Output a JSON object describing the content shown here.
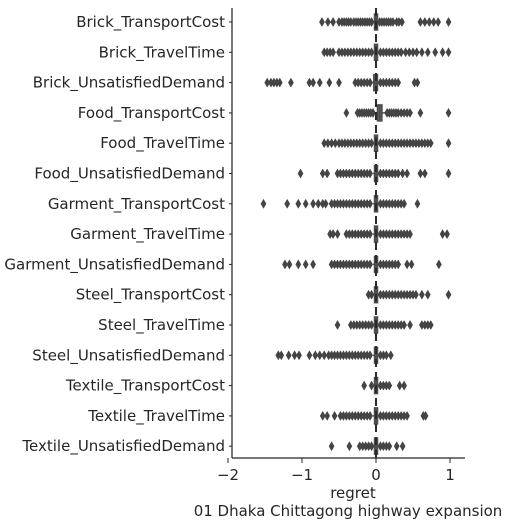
{
  "chart_data": {
    "type": "boxplot",
    "orientation": "horizontal",
    "title": "",
    "xlabel": "regret",
    "subtitle": "01 Dhaka Chittagong highway expansion",
    "ylabel": "",
    "xlim": [
      -2,
      1.15
    ],
    "xticks": [
      -2,
      -1,
      0,
      1
    ],
    "xtick_labels": [
      "−2",
      "−1",
      "0",
      "1"
    ],
    "grid": false,
    "box_color": "#4d4d4d",
    "outlier_color": "#444444",
    "categories": [
      "Brick_TransportCost",
      "Brick_TravelTime",
      "Brick_UnsatisfiedDemand",
      "Food_TransportCost",
      "Food_TravelTime",
      "Food_UnsatisfiedDemand",
      "Garment_TransportCost",
      "Garment_TravelTime",
      "Garment_UnsatisfiedDemand",
      "Steel_TransportCost",
      "Steel_TravelTime",
      "Steel_UnsatisfiedDemand",
      "Textile_TransportCost",
      "Textile_TravelTime",
      "Textile_UnsatisfiedDemand"
    ],
    "series": [
      {
        "category": "Brick_TransportCost",
        "q1": -0.02,
        "median": 0.0,
        "q3": 0.01,
        "whisker_low": -0.03,
        "whisker_high": 0.03,
        "outliers": [
          -0.73,
          -0.65,
          -0.58,
          -0.5,
          -0.46,
          -0.43,
          -0.4,
          -0.37,
          -0.34,
          -0.3,
          -0.27,
          -0.24,
          -0.21,
          -0.18,
          -0.15,
          -0.12,
          -0.09,
          -0.06,
          0.05,
          0.08,
          0.11,
          0.14,
          0.17,
          0.2,
          0.23,
          0.28,
          0.31,
          0.35,
          0.6,
          0.66,
          0.72,
          0.78,
          0.84,
          0.98
        ]
      },
      {
        "category": "Brick_TravelTime",
        "q1": -0.02,
        "median": 0.0,
        "q3": 0.02,
        "whisker_low": -0.04,
        "whisker_high": 0.04,
        "outliers": [
          -0.7,
          -0.66,
          -0.62,
          -0.58,
          -0.5,
          -0.46,
          -0.42,
          -0.38,
          -0.34,
          -0.3,
          -0.26,
          -0.22,
          -0.18,
          -0.14,
          -0.1,
          -0.06,
          0.06,
          0.1,
          0.14,
          0.18,
          0.22,
          0.26,
          0.3,
          0.34,
          0.4,
          0.45,
          0.5,
          0.55,
          0.62,
          0.7,
          0.8,
          0.9,
          0.98
        ]
      },
      {
        "category": "Brick_UnsatisfiedDemand",
        "q1": -0.03,
        "median": 0.0,
        "q3": 0.02,
        "whisker_low": -0.05,
        "whisker_high": 0.04,
        "outliers": [
          -1.47,
          -1.42,
          -1.38,
          -1.34,
          -1.3,
          -1.15,
          -0.9,
          -0.85,
          -0.76,
          -0.63,
          -0.5,
          -0.28,
          -0.24,
          -0.2,
          -0.16,
          -0.12,
          -0.08,
          0.06,
          0.1,
          0.14,
          0.18,
          0.22,
          0.26,
          0.3,
          0.52,
          0.56
        ]
      },
      {
        "category": "Food_TransportCost",
        "q1": 0.02,
        "median": 0.05,
        "q3": 0.08,
        "whisker_low": -0.02,
        "whisker_high": 0.12,
        "outliers": [
          -0.4,
          -0.25,
          -0.22,
          -0.19,
          -0.16,
          -0.13,
          -0.1,
          -0.07,
          -0.04,
          0.15,
          0.18,
          0.21,
          0.24,
          0.27,
          0.3,
          0.34,
          0.38,
          0.42,
          0.46,
          0.6,
          0.98
        ]
      },
      {
        "category": "Food_TravelTime",
        "q1": -0.02,
        "median": 0.0,
        "q3": 0.02,
        "whisker_low": -0.04,
        "whisker_high": 0.04,
        "outliers": [
          -0.7,
          -0.65,
          -0.6,
          -0.55,
          -0.5,
          -0.46,
          -0.42,
          -0.38,
          -0.34,
          -0.3,
          -0.26,
          -0.22,
          -0.18,
          -0.14,
          -0.1,
          -0.06,
          0.06,
          0.1,
          0.14,
          0.18,
          0.22,
          0.26,
          0.3,
          0.34,
          0.38,
          0.42,
          0.46,
          0.5,
          0.54,
          0.58,
          0.62,
          0.66,
          0.7,
          0.74,
          0.98
        ]
      },
      {
        "category": "Food_UnsatisfiedDemand",
        "q1": -0.02,
        "median": 0.0,
        "q3": 0.02,
        "whisker_low": -0.04,
        "whisker_high": 0.04,
        "outliers": [
          -1.02,
          -0.72,
          -0.66,
          -0.52,
          -0.48,
          -0.44,
          -0.4,
          -0.36,
          -0.32,
          -0.28,
          -0.24,
          -0.2,
          -0.16,
          -0.12,
          -0.08,
          0.06,
          0.1,
          0.14,
          0.18,
          0.22,
          0.26,
          0.3,
          0.36,
          0.42,
          0.6,
          0.66,
          0.98
        ]
      },
      {
        "category": "Garment_TransportCost",
        "q1": -0.02,
        "median": 0.0,
        "q3": 0.02,
        "whisker_low": -0.04,
        "whisker_high": 0.04,
        "outliers": [
          -1.52,
          -1.2,
          -1.05,
          -0.95,
          -0.85,
          -0.78,
          -0.72,
          -0.68,
          -0.6,
          -0.56,
          -0.52,
          -0.48,
          -0.44,
          -0.4,
          -0.36,
          -0.32,
          -0.28,
          -0.24,
          -0.2,
          -0.16,
          -0.12,
          -0.08,
          0.06,
          0.1,
          0.14,
          0.18,
          0.22,
          0.26,
          0.3,
          0.34,
          0.38,
          0.56
        ]
      },
      {
        "category": "Garment_TravelTime",
        "q1": -0.02,
        "median": 0.0,
        "q3": 0.02,
        "whisker_low": -0.04,
        "whisker_high": 0.04,
        "outliers": [
          -0.62,
          -0.58,
          -0.52,
          -0.4,
          -0.36,
          -0.32,
          -0.28,
          -0.24,
          -0.2,
          -0.16,
          -0.12,
          -0.08,
          0.06,
          0.1,
          0.14,
          0.18,
          0.22,
          0.26,
          0.3,
          0.34,
          0.38,
          0.42,
          0.46,
          0.9,
          0.96
        ]
      },
      {
        "category": "Garment_UnsatisfiedDemand",
        "q1": -0.02,
        "median": 0.0,
        "q3": 0.02,
        "whisker_low": -0.04,
        "whisker_high": 0.04,
        "outliers": [
          -1.23,
          -1.17,
          -1.05,
          -0.95,
          -0.85,
          -0.6,
          -0.56,
          -0.52,
          -0.48,
          -0.44,
          -0.4,
          -0.36,
          -0.32,
          -0.28,
          -0.24,
          -0.2,
          -0.16,
          -0.12,
          -0.08,
          0.06,
          0.1,
          0.14,
          0.18,
          0.22,
          0.26,
          0.3,
          0.42,
          0.48,
          0.85
        ]
      },
      {
        "category": "Steel_TransportCost",
        "q1": -0.02,
        "median": 0.0,
        "q3": 0.02,
        "whisker_low": -0.04,
        "whisker_high": 0.04,
        "outliers": [
          -0.1,
          -0.06,
          0.06,
          0.1,
          0.14,
          0.18,
          0.22,
          0.26,
          0.3,
          0.34,
          0.38,
          0.42,
          0.46,
          0.5,
          0.54,
          0.62,
          0.7,
          0.98
        ]
      },
      {
        "category": "Steel_TravelTime",
        "q1": -0.02,
        "median": 0.0,
        "q3": 0.02,
        "whisker_low": -0.04,
        "whisker_high": 0.04,
        "outliers": [
          -0.52,
          -0.34,
          -0.3,
          -0.26,
          -0.22,
          -0.18,
          -0.14,
          -0.1,
          -0.06,
          0.06,
          0.1,
          0.14,
          0.18,
          0.22,
          0.26,
          0.3,
          0.34,
          0.38,
          0.46,
          0.62,
          0.66,
          0.7,
          0.74
        ]
      },
      {
        "category": "Steel_UnsatisfiedDemand",
        "q1": -0.02,
        "median": 0.0,
        "q3": 0.02,
        "whisker_low": -0.04,
        "whisker_high": 0.04,
        "outliers": [
          -1.32,
          -1.28,
          -1.18,
          -1.1,
          -1.04,
          -0.9,
          -0.82,
          -0.76,
          -0.7,
          -0.64,
          -0.6,
          -0.56,
          -0.52,
          -0.48,
          -0.44,
          -0.4,
          -0.36,
          -0.32,
          -0.28,
          -0.24,
          -0.2,
          -0.16,
          -0.12,
          -0.08,
          0.06,
          0.1,
          0.14,
          0.2
        ]
      },
      {
        "category": "Textile_TransportCost",
        "q1": -0.02,
        "median": 0.0,
        "q3": 0.02,
        "whisker_low": -0.04,
        "whisker_high": 0.04,
        "outliers": [
          -0.16,
          -0.06,
          0.06,
          0.1,
          0.14,
          0.18,
          0.32,
          0.38
        ]
      },
      {
        "category": "Textile_TravelTime",
        "q1": -0.02,
        "median": 0.0,
        "q3": 0.02,
        "whisker_low": -0.04,
        "whisker_high": 0.04,
        "outliers": [
          -0.72,
          -0.66,
          -0.56,
          -0.48,
          -0.44,
          -0.4,
          -0.36,
          -0.32,
          -0.28,
          -0.24,
          -0.2,
          -0.16,
          -0.12,
          -0.08,
          0.06,
          0.1,
          0.14,
          0.18,
          0.22,
          0.26,
          0.3,
          0.34,
          0.38,
          0.42,
          0.64,
          0.67
        ]
      },
      {
        "category": "Textile_UnsatisfiedDemand",
        "q1": -0.02,
        "median": 0.0,
        "q3": 0.02,
        "whisker_low": -0.04,
        "whisker_high": 0.04,
        "outliers": [
          -0.6,
          -0.36,
          -0.22,
          -0.18,
          -0.14,
          -0.1,
          -0.06,
          0.06,
          0.1,
          0.14,
          0.18,
          0.28,
          0.36
        ]
      }
    ]
  }
}
